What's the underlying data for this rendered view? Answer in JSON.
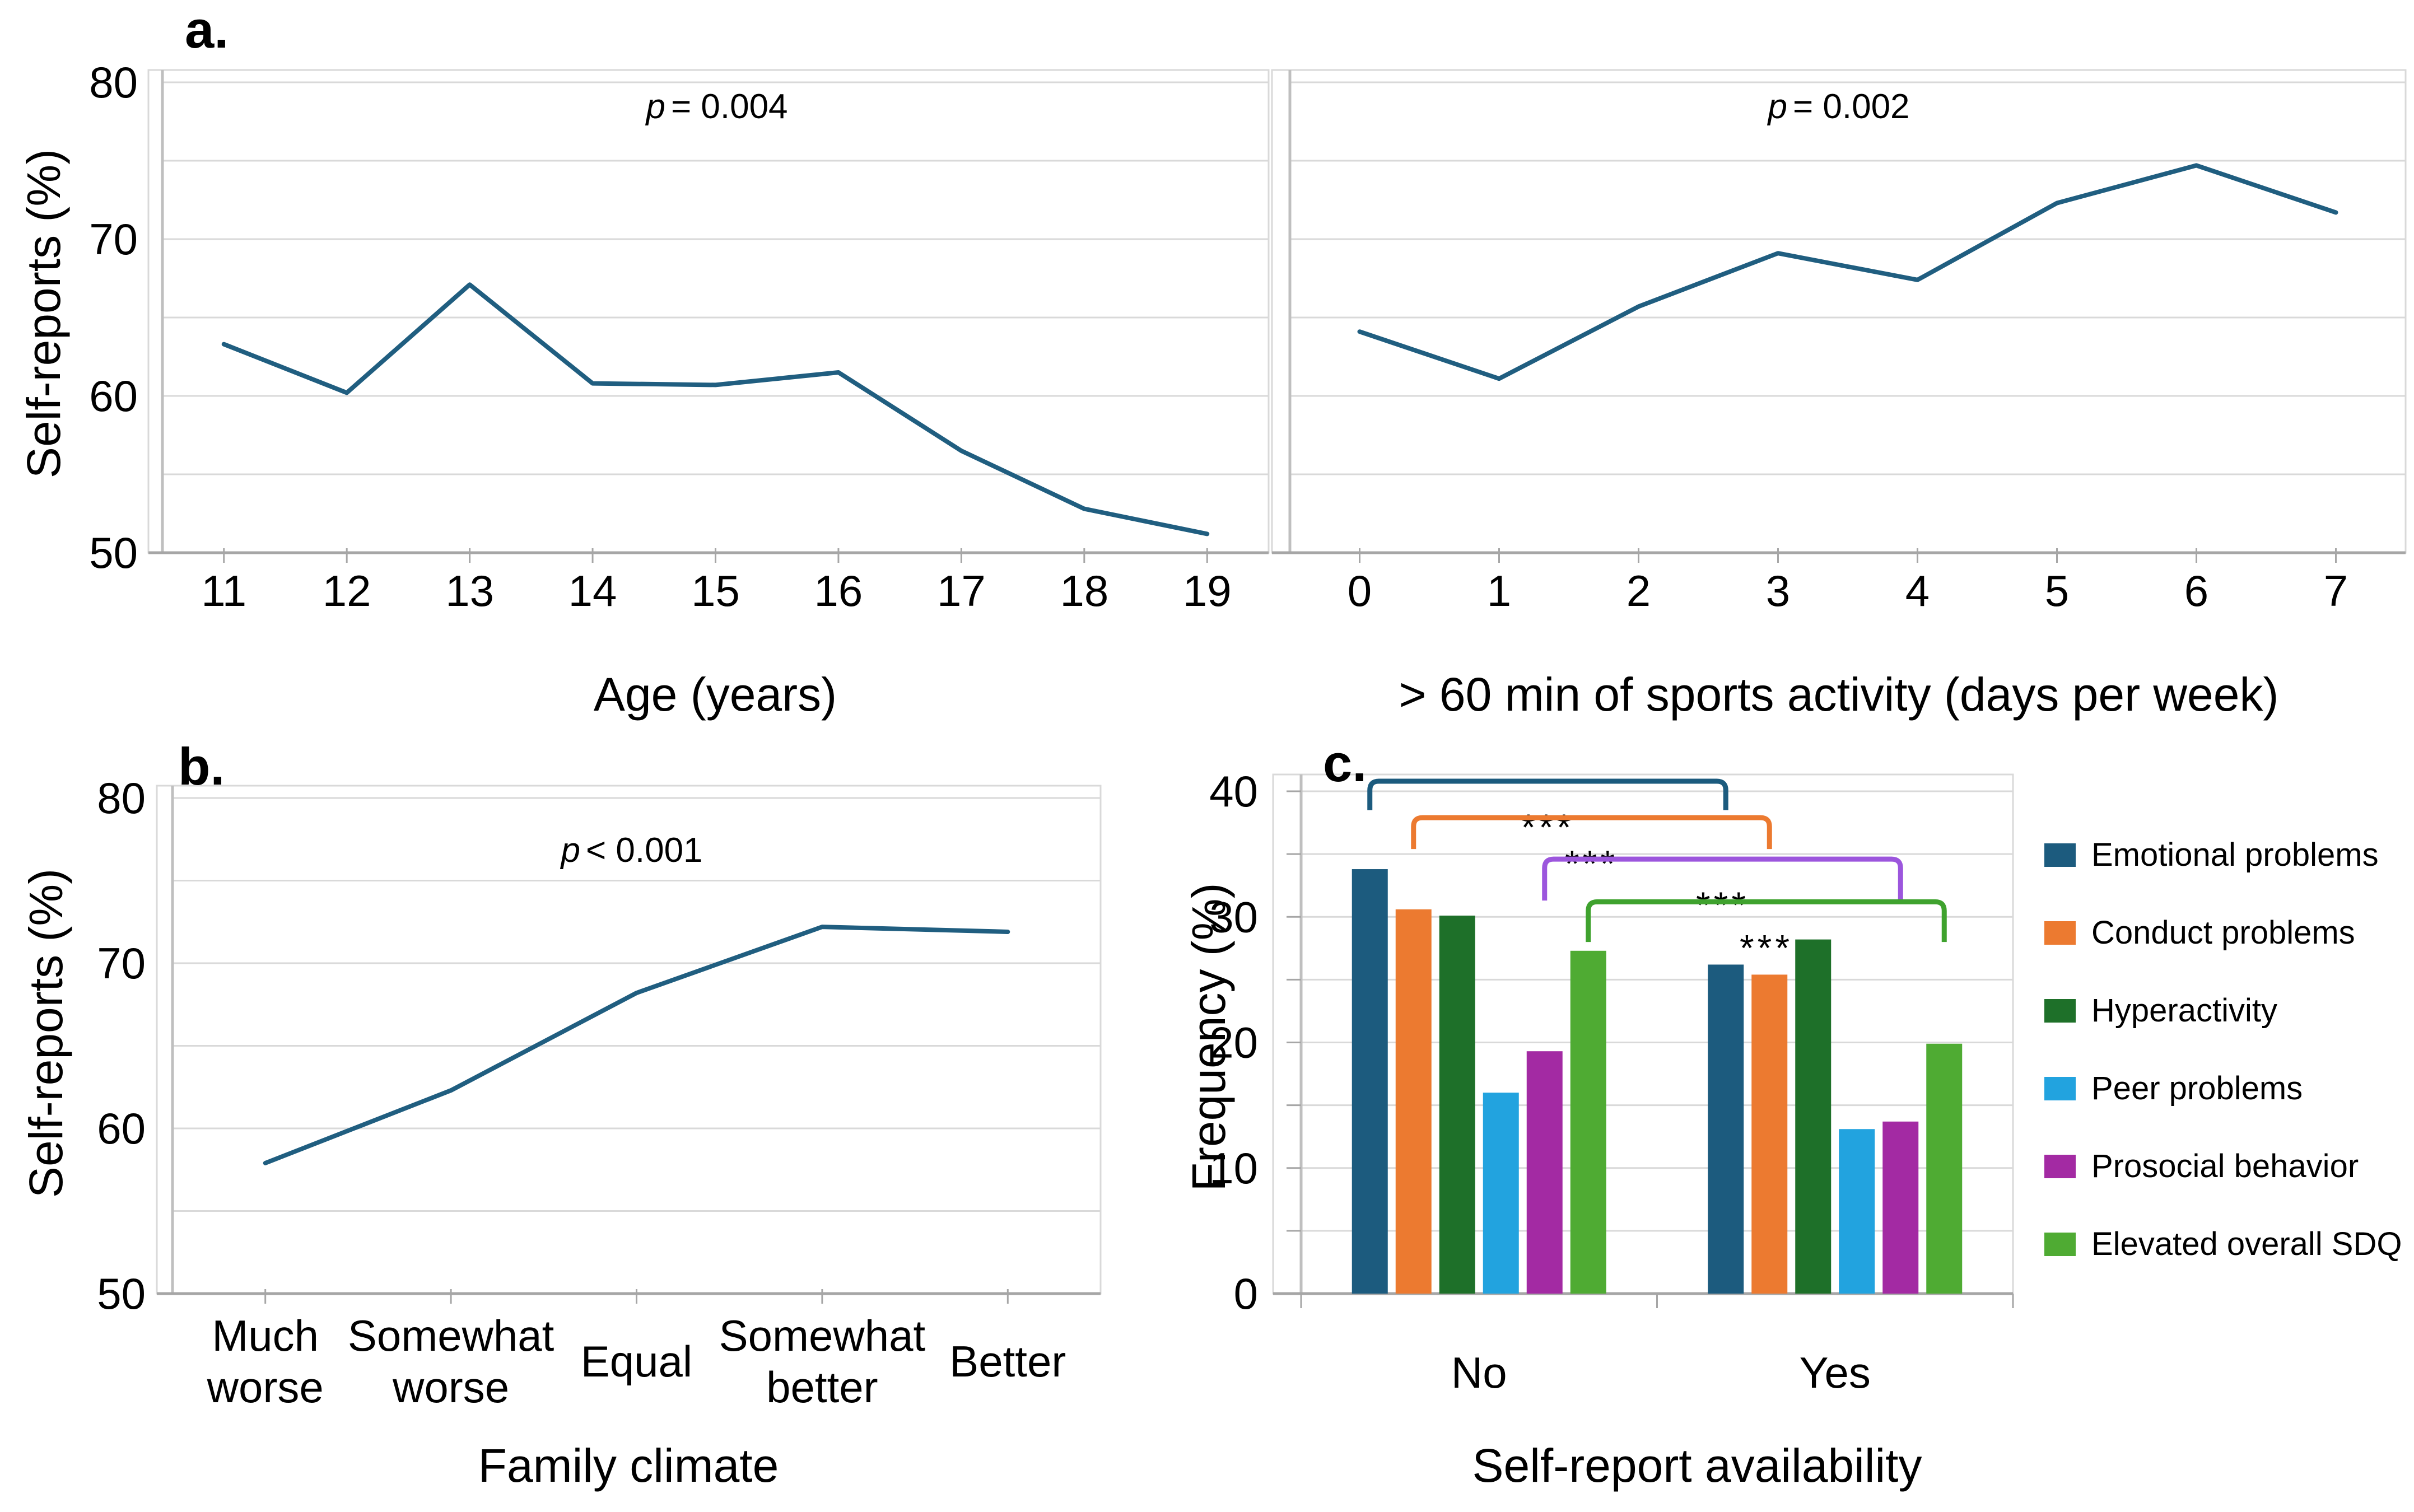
{
  "panels": {
    "a": "a.",
    "b": "b.",
    "c": "c."
  },
  "colors": {
    "line": "#205E80",
    "grid": "#D9D9D9",
    "plot_border": "#D9D9D9",
    "axis_dark": "#A6A6A6",
    "axis_mid": "#BFBFBF",
    "stars": "#3A3A3A"
  },
  "chart_data": [
    {
      "id": "self_reports_by_age",
      "type": "line",
      "panel": "a",
      "xlabel": "Age (years)",
      "ylabel": "Self-reports (%)",
      "p_label": "p",
      "p_value": "= 0.004",
      "x": [
        11,
        12,
        13,
        14,
        15,
        16,
        17,
        18,
        19
      ],
      "y": [
        63.3,
        60.2,
        67.1,
        60.8,
        60.7,
        61.5,
        56.5,
        52.8,
        51.2
      ],
      "ylim": [
        50,
        80
      ],
      "yticks": [
        50,
        60,
        70,
        80
      ],
      "grid_step": 5,
      "line_color": "#205E80",
      "legend_position": "none"
    },
    {
      "id": "self_reports_by_sports",
      "type": "line",
      "panel": "a",
      "xlabel": "> 60 min of sports activity (days per week)",
      "ylabel": "Self-reports (%)",
      "p_label": "p",
      "p_value": "= 0.002",
      "x": [
        0,
        1,
        2,
        3,
        4,
        5,
        6,
        7
      ],
      "y": [
        64.1,
        61.1,
        65.7,
        69.1,
        67.4,
        72.3,
        74.7,
        71.7
      ],
      "ylim": [
        50,
        80
      ],
      "yticks": [
        50,
        60,
        70,
        80
      ],
      "grid_step": 5,
      "line_color": "#205E80",
      "legend_position": "none"
    },
    {
      "id": "self_reports_by_family_climate",
      "type": "line",
      "panel": "b",
      "xlabel": "Family climate",
      "ylabel": "Self-reports (%)",
      "p_label": "p",
      "p_value": "< 0.001",
      "categories": [
        "Much worse",
        "Somewhat worse",
        "Equal",
        "Somewhat better",
        "Better"
      ],
      "category_lines": [
        [
          "Much",
          "worse"
        ],
        [
          "Somewhat",
          "worse"
        ],
        [
          "Equal"
        ],
        [
          "Somewhat",
          "better"
        ],
        [
          "Better"
        ]
      ],
      "y": [
        57.9,
        62.3,
        68.2,
        72.2,
        71.9
      ],
      "ylim": [
        50,
        80
      ],
      "yticks": [
        50,
        60,
        70,
        80
      ],
      "grid_step": 5,
      "line_color": "#205E80",
      "legend_position": "none"
    },
    {
      "id": "sdq_frequency_by_availability",
      "type": "bar",
      "panel": "c",
      "xlabel": "Self-report availability",
      "ylabel": "Frequency (%)",
      "categories": [
        "No",
        "Yes"
      ],
      "series": [
        {
          "name": "Emotional problems",
          "color": "#1C5B7E",
          "values": [
            33.8,
            26.2
          ]
        },
        {
          "name": "Conduct problems",
          "color": "#EC7A30",
          "values": [
            30.6,
            25.4
          ]
        },
        {
          "name": "Hyperactivity",
          "color": "#1E7029",
          "values": [
            30.1,
            28.2
          ]
        },
        {
          "name": "Peer problems",
          "color": "#22A3DF",
          "values": [
            16.0,
            13.1
          ]
        },
        {
          "name": "Prosocial behavior",
          "color": "#A32AA3",
          "values": [
            19.3,
            13.7
          ]
        },
        {
          "name": "Elevated overall SDQ",
          "color": "#4FAB33",
          "values": [
            27.3,
            19.9
          ]
        }
      ],
      "ylim": [
        0,
        40
      ],
      "yticks": [
        0,
        10,
        20,
        30,
        40
      ],
      "grid_step": 5,
      "legend_position": "right",
      "brackets": [
        {
          "series_index": 0,
          "label": "***",
          "color": "#1C5B7E",
          "top_value": 40.8,
          "leg_value": 38.5
        },
        {
          "series_index": 1,
          "label": "***",
          "color": "#EC7A30",
          "top_value": 37.9,
          "leg_value": 35.4
        },
        {
          "series_index": 4,
          "label": "***",
          "color": "#9C56DD",
          "top_value": 34.6,
          "leg_value": 31.3
        },
        {
          "series_index": 5,
          "label": "***",
          "color": "#3FA22E",
          "top_value": 31.2,
          "leg_value": 28.0
        }
      ]
    }
  ]
}
